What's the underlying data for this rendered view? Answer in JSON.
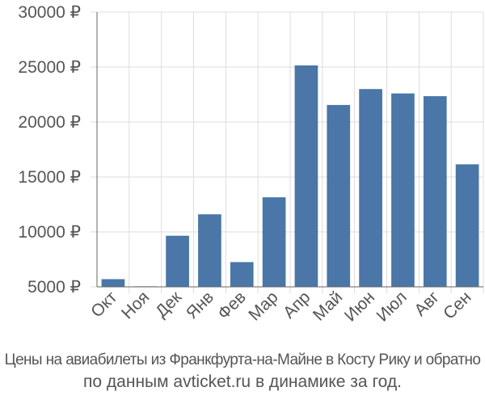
{
  "chart_data": {
    "type": "bar",
    "categories": [
      "Окт",
      "Ноя",
      "Дек",
      "Янв",
      "Фев",
      "Мар",
      "Апр",
      "Май",
      "Июн",
      "Июл",
      "Авг",
      "Сен"
    ],
    "values": [
      5700,
      5050,
      9650,
      11600,
      7250,
      13150,
      25150,
      21550,
      23000,
      22600,
      22350,
      16150
    ],
    "ylim": [
      5000,
      30000
    ],
    "yticks": [
      5000,
      10000,
      15000,
      20000,
      25000,
      30000
    ],
    "ytick_labels": [
      "5000 ₽",
      "10000 ₽",
      "15000 ₽",
      "20000 ₽",
      "25000 ₽",
      "30000 ₽"
    ],
    "grid": true,
    "bar_color": "#4a76a8",
    "grid_color": "#dddddd",
    "axis_color": "#666666"
  },
  "caption": {
    "line1": "Цены на авиабилеты из Франкфурта-на-Майне в Косту Рику и обратно",
    "line2": "по данным avticket.ru в динамике за год."
  }
}
